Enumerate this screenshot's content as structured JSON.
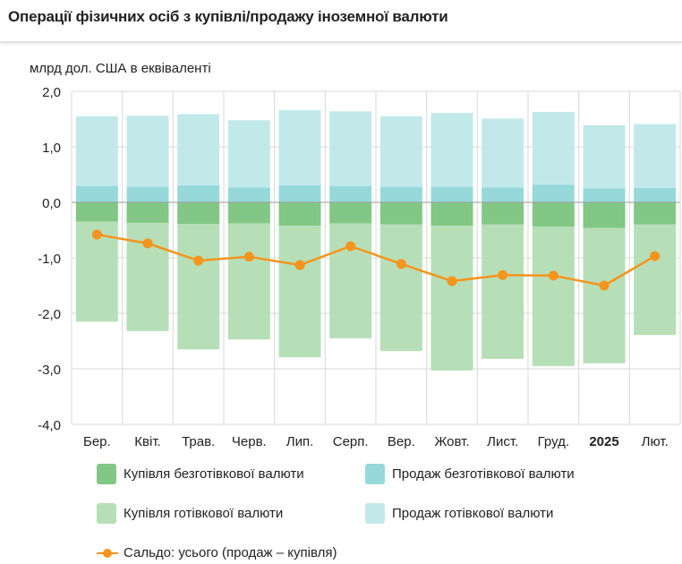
{
  "header": {
    "title": "Операції фізичних осіб з купівлі/продажу іноземної валюти"
  },
  "chart_data": {
    "type": "bar",
    "stacked": true,
    "title": "Операції фізичних осіб з купівлі/продажу іноземної валюти",
    "ylabel": "млрд дол. США в еквіваленті",
    "xlabel": "",
    "ylim": [
      -4.0,
      2.0
    ],
    "yticks": [
      2.0,
      1.0,
      0.0,
      -1.0,
      -2.0,
      -3.0,
      -4.0
    ],
    "ytick_labels": [
      "2,0",
      "1,0",
      "0,0",
      "-1,0",
      "-2,0",
      "-3,0",
      "-4,0"
    ],
    "grid": true,
    "categories": [
      "Бер.",
      "Квіт.",
      "Трав.",
      "Черв.",
      "Лип.",
      "Серп.",
      "Вер.",
      "Жовт.",
      "Лист.",
      "Груд.",
      "2025",
      "Лют."
    ],
    "bold_categories": [
      "2025"
    ],
    "series": [
      {
        "name": "Купівля безготівкової валюти",
        "color": "#82c785",
        "kind": "bar",
        "values": [
          -0.35,
          -0.37,
          -0.39,
          -0.38,
          -0.42,
          -0.38,
          -0.4,
          -0.42,
          -0.4,
          -0.44,
          -0.46,
          -0.4
        ]
      },
      {
        "name": "Продаж безготівкової валюти",
        "color": "#97d9da",
        "kind": "bar",
        "values": [
          0.29,
          0.28,
          0.31,
          0.27,
          0.31,
          0.29,
          0.28,
          0.28,
          0.27,
          0.32,
          0.25,
          0.26
        ]
      },
      {
        "name": "Купівля готівкової валюти",
        "color": "#b6dfb8",
        "kind": "bar",
        "values": [
          -1.8,
          -1.95,
          -2.26,
          -2.09,
          -2.37,
          -2.07,
          -2.28,
          -2.61,
          -2.42,
          -2.51,
          -2.44,
          -1.99
        ]
      },
      {
        "name": "Продаж готівкової валюти",
        "color": "#c2e9ea",
        "kind": "bar",
        "values": [
          1.26,
          1.28,
          1.28,
          1.21,
          1.35,
          1.35,
          1.27,
          1.33,
          1.24,
          1.31,
          1.14,
          1.15
        ]
      },
      {
        "name": "Сальдо: усього (продаж – купівля)",
        "color": "#f7941d",
        "kind": "line",
        "values": [
          -0.58,
          -0.74,
          -1.05,
          -0.98,
          -1.13,
          -0.79,
          -1.11,
          -1.42,
          -1.31,
          -1.32,
          -1.5,
          -0.97
        ]
      }
    ],
    "legend_position": "bottom"
  },
  "legend": {
    "items": [
      {
        "label": "Купівля безготівкової валюти",
        "color": "#82c785"
      },
      {
        "label": "Продаж безготівкової валюти",
        "color": "#97d9da"
      },
      {
        "label": "Купівля готівкової валюти",
        "color": "#b6dfb8"
      },
      {
        "label": "Продаж готівкової валюти",
        "color": "#c2e9ea"
      },
      {
        "label": "Сальдо: усього (продаж – купівля)",
        "color": "#f7941d"
      }
    ]
  }
}
